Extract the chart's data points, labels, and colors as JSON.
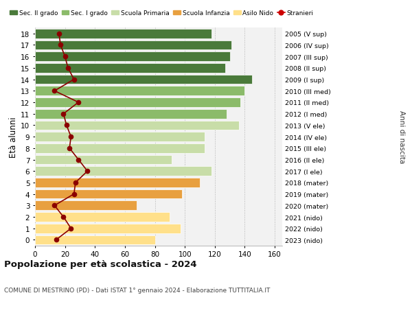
{
  "ages": [
    0,
    1,
    2,
    3,
    4,
    5,
    6,
    7,
    8,
    9,
    10,
    11,
    12,
    13,
    14,
    15,
    16,
    17,
    18
  ],
  "anni_nascita": [
    "2023 (nido)",
    "2022 (nido)",
    "2021 (nido)",
    "2020 (mater)",
    "2019 (mater)",
    "2018 (mater)",
    "2017 (I ele)",
    "2016 (II ele)",
    "2015 (III ele)",
    "2014 (IV ele)",
    "2013 (V ele)",
    "2012 (I med)",
    "2011 (II med)",
    "2010 (III med)",
    "2009 (I sup)",
    "2008 (II sup)",
    "2007 (III sup)",
    "2006 (IV sup)",
    "2005 (V sup)"
  ],
  "bar_values": [
    80,
    97,
    90,
    68,
    98,
    110,
    118,
    91,
    113,
    113,
    136,
    128,
    137,
    140,
    145,
    127,
    130,
    131,
    118
  ],
  "stranieri": [
    14,
    24,
    19,
    13,
    26,
    27,
    35,
    29,
    23,
    24,
    21,
    19,
    29,
    13,
    26,
    22,
    20,
    17,
    16
  ],
  "bar_colors": {
    "asilo_nido": "#FFE08A",
    "scuola_infanzia": "#E8A040",
    "scuola_primaria": "#C8DDA8",
    "sec_I_grado": "#8BBB6A",
    "sec_II_grado": "#4A7A3A"
  },
  "stranieri_color": "#8B0000",
  "legend_colors": {
    "Sec. II grado": "#4A7A3A",
    "Sec. I grado": "#8BBB6A",
    "Scuola Primaria": "#C8DDA8",
    "Scuola Infanzia": "#E8A040",
    "Asilo Nido": "#FFE08A",
    "Stranieri": "#CC0000"
  },
  "title": "Popolazione per eta scolastica - 2024",
  "subtitle": "COMUNE DI MESTRINO (PD) - Dati ISTAT 1° gennaio 2024 - Elaborazione TUTTITALIA.IT",
  "right_label": "Anni di nascita",
  "xlim": [
    0,
    165
  ],
  "background_color": "#F2F2F2"
}
